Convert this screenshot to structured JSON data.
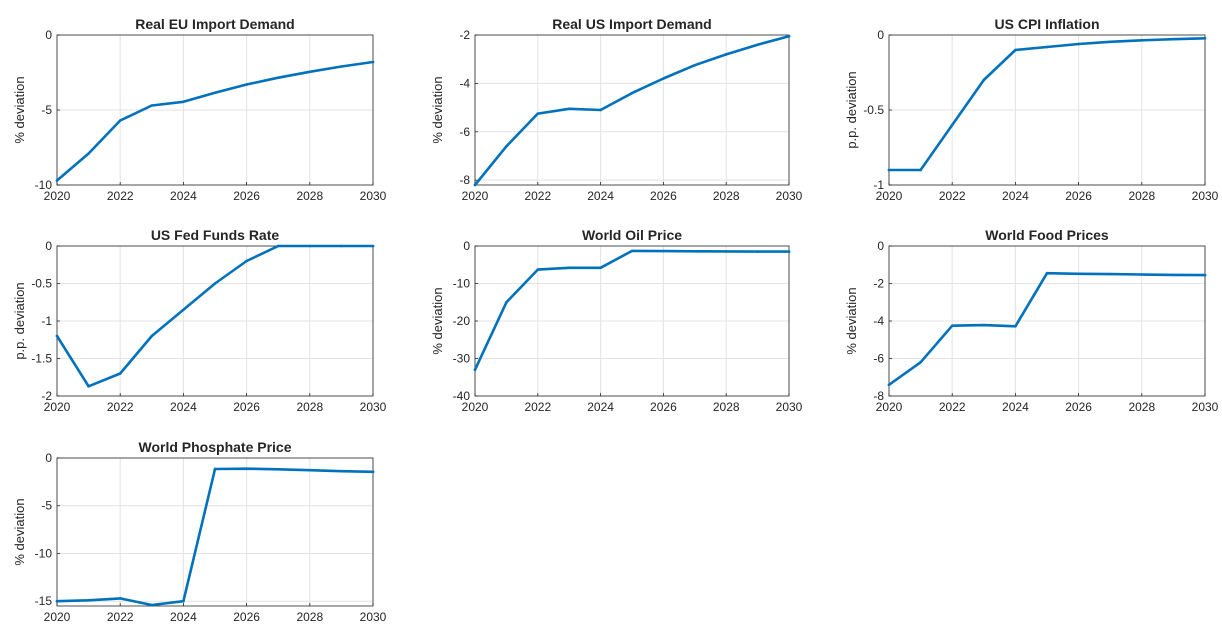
{
  "style": {
    "line_color": "#0072BD",
    "grid_color": "#e3e3e3",
    "axis_color": "#262626",
    "background": "#ffffff"
  },
  "chart_data": [
    {
      "type": "line",
      "title": "Real EU Import Demand",
      "ylabel": "% deviation",
      "xlabel": "",
      "grid": true,
      "xlim": [
        2020,
        2030
      ],
      "ylim": [
        -10,
        0
      ],
      "xticks": [
        "2020",
        "2022",
        "2024",
        "2026",
        "2028",
        "2030"
      ],
      "yticks": [
        "-10",
        "-5",
        "0"
      ],
      "series": [
        {
          "x": [
            2020,
            2021,
            2022,
            2023,
            2024,
            2025,
            2026,
            2027,
            2028,
            2029,
            2030
          ],
          "values": [
            -9.7,
            -7.9,
            -5.7,
            -4.7,
            -4.45,
            -3.85,
            -3.3,
            -2.85,
            -2.45,
            -2.1,
            -1.8
          ]
        }
      ]
    },
    {
      "type": "line",
      "title": "Real US Import Demand",
      "ylabel": "% deviation",
      "xlabel": "",
      "grid": true,
      "xlim": [
        2020,
        2030
      ],
      "ylim": [
        -8.2,
        -2
      ],
      "xticks": [
        "2020",
        "2022",
        "2024",
        "2026",
        "2028",
        "2030"
      ],
      "yticks": [
        "-8",
        "-6",
        "-4",
        "-2"
      ],
      "series": [
        {
          "x": [
            2020,
            2021,
            2022,
            2023,
            2024,
            2025,
            2026,
            2027,
            2028,
            2029,
            2030
          ],
          "values": [
            -8.2,
            -6.6,
            -5.25,
            -5.05,
            -5.1,
            -4.4,
            -3.8,
            -3.25,
            -2.8,
            -2.4,
            -2.05
          ]
        }
      ]
    },
    {
      "type": "line",
      "title": "US CPI Inflation",
      "ylabel": "p.p. deviation",
      "xlabel": "",
      "grid": true,
      "xlim": [
        2020,
        2030
      ],
      "ylim": [
        -1,
        0
      ],
      "xticks": [
        "2020",
        "2022",
        "2024",
        "2026",
        "2028",
        "2030"
      ],
      "yticks": [
        "-1",
        "-0.5",
        "0"
      ],
      "series": [
        {
          "x": [
            2020,
            2021,
            2022,
            2023,
            2024,
            2025,
            2026,
            2027,
            2028,
            2029,
            2030
          ],
          "values": [
            -0.9,
            -0.9,
            -0.6,
            -0.3,
            -0.1,
            -0.08,
            -0.06,
            -0.045,
            -0.035,
            -0.028,
            -0.022
          ]
        }
      ]
    },
    {
      "type": "line",
      "title": "US Fed Funds Rate",
      "ylabel": "p.p. deviation",
      "xlabel": "",
      "grid": true,
      "xlim": [
        2020,
        2030
      ],
      "ylim": [
        -2,
        0
      ],
      "xticks": [
        "2020",
        "2022",
        "2024",
        "2026",
        "2028",
        "2030"
      ],
      "yticks": [
        "-2",
        "-1.5",
        "-1",
        "-0.5",
        "0"
      ],
      "series": [
        {
          "x": [
            2020,
            2021,
            2022,
            2023,
            2024,
            2025,
            2026,
            2027,
            2028,
            2029,
            2030
          ],
          "values": [
            -1.2,
            -1.87,
            -1.7,
            -1.2,
            -0.85,
            -0.5,
            -0.2,
            0,
            0,
            0,
            0
          ]
        }
      ]
    },
    {
      "type": "line",
      "title": "World Oil Price",
      "ylabel": "% deviation",
      "xlabel": "",
      "grid": true,
      "xlim": [
        2020,
        2030
      ],
      "ylim": [
        -40,
        0
      ],
      "xticks": [
        "2020",
        "2022",
        "2024",
        "2026",
        "2028",
        "2030"
      ],
      "yticks": [
        "-40",
        "-30",
        "-20",
        "-10",
        "0"
      ],
      "series": [
        {
          "x": [
            2020,
            2021,
            2022,
            2023,
            2024,
            2025,
            2026,
            2027,
            2028,
            2029,
            2030
          ],
          "values": [
            -33,
            -15,
            -6.3,
            -5.8,
            -5.8,
            -1.3,
            -1.35,
            -1.4,
            -1.45,
            -1.5,
            -1.5
          ]
        }
      ]
    },
    {
      "type": "line",
      "title": "World Food Prices",
      "ylabel": "% deviation",
      "xlabel": "",
      "grid": true,
      "xlim": [
        2020,
        2030
      ],
      "ylim": [
        -8,
        0
      ],
      "xticks": [
        "2020",
        "2022",
        "2024",
        "2026",
        "2028",
        "2030"
      ],
      "yticks": [
        "-8",
        "-6",
        "-4",
        "-2",
        "0"
      ],
      "series": [
        {
          "x": [
            2020,
            2021,
            2022,
            2023,
            2024,
            2025,
            2026,
            2027,
            2028,
            2029,
            2030
          ],
          "values": [
            -7.4,
            -6.2,
            -4.25,
            -4.22,
            -4.28,
            -1.45,
            -1.48,
            -1.5,
            -1.52,
            -1.54,
            -1.55
          ]
        }
      ]
    },
    {
      "type": "line",
      "title": "World Phosphate Price",
      "ylabel": "% deviation",
      "xlabel": "",
      "grid": true,
      "xlim": [
        2020,
        2030
      ],
      "ylim": [
        -15.5,
        0
      ],
      "xticks": [
        "2020",
        "2022",
        "2024",
        "2026",
        "2028",
        "2030"
      ],
      "yticks": [
        "-15",
        "-10",
        "-5",
        "0"
      ],
      "series": [
        {
          "x": [
            2020,
            2021,
            2022,
            2023,
            2024,
            2025,
            2026,
            2027,
            2028,
            2029,
            2030
          ],
          "values": [
            -15.0,
            -14.9,
            -14.7,
            -15.4,
            -15.0,
            -1.15,
            -1.12,
            -1.18,
            -1.28,
            -1.38,
            -1.45
          ]
        }
      ]
    }
  ]
}
